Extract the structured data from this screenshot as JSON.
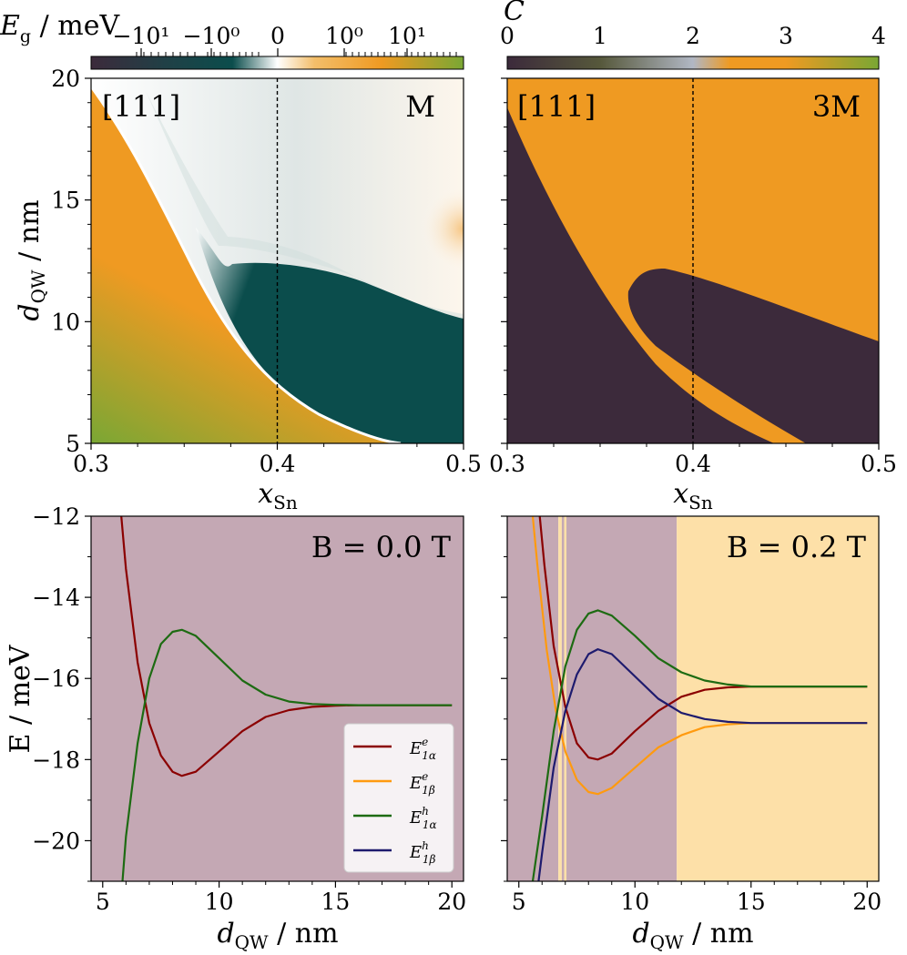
{
  "colors": {
    "dark": "#3c2a3b",
    "teal": "#0b4d4c",
    "orange": "#ef9a22",
    "green": "#7aa734",
    "mauve_bg": "#c4a8b4",
    "light_orange_bg": "#fde0a8",
    "wine": "#8b0000",
    "navy": "#1e1b6e",
    "dgreen": "#1d6b12",
    "lorange": "#ff9a0f"
  },
  "colorbars": {
    "left": {
      "label_main": "E",
      "label_sub": "g",
      "label_unit": " / meV",
      "ticks": [
        "−10¹",
        "−10⁰",
        "0",
        "10⁰",
        "10¹"
      ]
    },
    "right": {
      "label": "C",
      "ticks": [
        "0",
        "1",
        "2",
        "3",
        "4"
      ]
    }
  },
  "chart_data": [
    {
      "type": "heatmap",
      "panel": "top-left",
      "corner_left": "[111]",
      "corner_right": "M",
      "xlabel_main": "x",
      "xlabel_sub": "Sn",
      "ylabel_main": "d",
      "ylabel_sub": "QW",
      "ylabel_unit": " / nm",
      "xlim": [
        0.3,
        0.5
      ],
      "ylim": [
        5,
        20
      ],
      "xticks": [
        "0.3",
        "0.4",
        "0.5"
      ],
      "yticks": [
        "5",
        "10",
        "15",
        "20"
      ],
      "dashed_x": 0.4
    },
    {
      "type": "heatmap",
      "panel": "top-right",
      "corner_left": "[111]",
      "corner_right": "3M",
      "xlabel_main": "x",
      "xlabel_sub": "Sn",
      "xlim": [
        0.3,
        0.5
      ],
      "ylim": [
        5,
        20
      ],
      "xticks": [
        "0.3",
        "0.4",
        "0.5"
      ],
      "dashed_x": 0.4
    },
    {
      "type": "line",
      "panel": "bottom-left",
      "annotation": "B = 0.0 T",
      "xlabel_main": "d",
      "xlabel_sub": "QW",
      "xlabel_unit": " / nm",
      "ylabel": "E / meV",
      "xlim": [
        4.5,
        20.5
      ],
      "ylim": [
        -21,
        -12
      ],
      "xticks": [
        "5",
        "10",
        "15",
        "20"
      ],
      "yticks": [
        "−20",
        "−18",
        "−16",
        "−14",
        "−12"
      ],
      "series": [
        {
          "name": "E1αe",
          "color": "#8b0000",
          "x": [
            5.8,
            6,
            6.5,
            7,
            7.5,
            8,
            8.4,
            9,
            10,
            11,
            12,
            13,
            14,
            15,
            16,
            17,
            18,
            19,
            20
          ],
          "y": [
            -12.0,
            -13.3,
            -15.6,
            -17.1,
            -17.9,
            -18.3,
            -18.4,
            -18.3,
            -17.8,
            -17.3,
            -16.95,
            -16.78,
            -16.7,
            -16.67,
            -16.66,
            -16.66,
            -16.66,
            -16.66,
            -16.66
          ]
        },
        {
          "name": "E1αh",
          "color": "#1d6b12",
          "x": [
            5.85,
            6,
            6.5,
            7,
            7.5,
            8,
            8.4,
            9,
            10,
            11,
            12,
            13,
            14,
            15,
            16,
            17,
            18,
            19,
            20
          ],
          "y": [
            -21.0,
            -19.9,
            -17.6,
            -16.0,
            -15.15,
            -14.85,
            -14.8,
            -14.95,
            -15.5,
            -16.05,
            -16.4,
            -16.57,
            -16.63,
            -16.65,
            -16.66,
            -16.66,
            -16.66,
            -16.66,
            -16.66
          ]
        }
      ],
      "legend": {
        "placement": "lower-right",
        "items": [
          {
            "main": "E",
            "sup": "e",
            "sub": "1α",
            "color": "#8b0000"
          },
          {
            "main": "E",
            "sup": "e",
            "sub": "1β",
            "color": "#ff9a0f"
          },
          {
            "main": "E",
            "sup": "h",
            "sub": "1α",
            "color": "#1d6b12"
          },
          {
            "main": "E",
            "sup": "h",
            "sub": "1β",
            "color": "#1e1b6e"
          }
        ]
      }
    },
    {
      "type": "line",
      "panel": "bottom-right",
      "annotation": "B = 0.2 T",
      "xlabel_main": "d",
      "xlabel_sub": "QW",
      "xlabel_unit": " / nm",
      "xlim": [
        4.5,
        20.5
      ],
      "ylim": [
        -21,
        -12
      ],
      "xticks": [
        "5",
        "10",
        "15",
        "20"
      ],
      "regions": [
        {
          "x0": 4.5,
          "x1": 6.7,
          "color": "#c4a8b4"
        },
        {
          "x0": 6.7,
          "x1": 6.85,
          "color": "#fde0a8"
        },
        {
          "x0": 6.85,
          "x1": 6.95,
          "color": "#c4a8b4"
        },
        {
          "x0": 6.95,
          "x1": 7.05,
          "color": "#fde0a8"
        },
        {
          "x0": 7.05,
          "x1": 11.8,
          "color": "#c4a8b4"
        },
        {
          "x0": 11.8,
          "x1": 20.5,
          "color": "#fde0a8"
        }
      ],
      "series": [
        {
          "name": "E1αe",
          "color": "#8b0000",
          "x": [
            5.9,
            6.1,
            6.5,
            7,
            7.5,
            8,
            8.4,
            9,
            10,
            11,
            12,
            13,
            14,
            15,
            16,
            17,
            18,
            19,
            20
          ],
          "y": [
            -12.0,
            -13.2,
            -15.2,
            -16.7,
            -17.6,
            -17.95,
            -18.0,
            -17.85,
            -17.3,
            -16.8,
            -16.45,
            -16.28,
            -16.22,
            -16.2,
            -16.2,
            -16.2,
            -16.2,
            -16.2,
            -16.2
          ]
        },
        {
          "name": "E1βe",
          "color": "#ff9a0f",
          "x": [
            5.6,
            5.8,
            6.2,
            6.6,
            7,
            7.5,
            8,
            8.4,
            9,
            10,
            11,
            12,
            13,
            14,
            15,
            16,
            17,
            18,
            19,
            20
          ],
          "y": [
            -12.0,
            -13.2,
            -15.3,
            -16.8,
            -17.8,
            -18.5,
            -18.8,
            -18.85,
            -18.7,
            -18.2,
            -17.7,
            -17.4,
            -17.2,
            -17.13,
            -17.1,
            -17.1,
            -17.1,
            -17.1,
            -17.1,
            -17.1
          ]
        },
        {
          "name": "E1αh",
          "color": "#1d6b12",
          "x": [
            5.6,
            6,
            6.5,
            7,
            7.5,
            8,
            8.4,
            9,
            10,
            11,
            12,
            13,
            14,
            15,
            16,
            17,
            18,
            19,
            20
          ],
          "y": [
            -21.0,
            -19.4,
            -17.3,
            -15.7,
            -14.8,
            -14.4,
            -14.32,
            -14.45,
            -14.95,
            -15.5,
            -15.85,
            -16.05,
            -16.15,
            -16.2,
            -16.2,
            -16.2,
            -16.2,
            -16.2,
            -16.2
          ]
        },
        {
          "name": "E1βh",
          "color": "#1e1b6e",
          "x": [
            5.85,
            6,
            6.5,
            7,
            7.5,
            8,
            8.4,
            9,
            10,
            11,
            12,
            13,
            14,
            15,
            16,
            17,
            18,
            19,
            20
          ],
          "y": [
            -21.0,
            -20.3,
            -18.2,
            -16.8,
            -15.9,
            -15.4,
            -15.28,
            -15.4,
            -15.95,
            -16.5,
            -16.85,
            -17.0,
            -17.07,
            -17.1,
            -17.1,
            -17.1,
            -17.1,
            -17.1,
            -17.1
          ]
        }
      ]
    }
  ]
}
